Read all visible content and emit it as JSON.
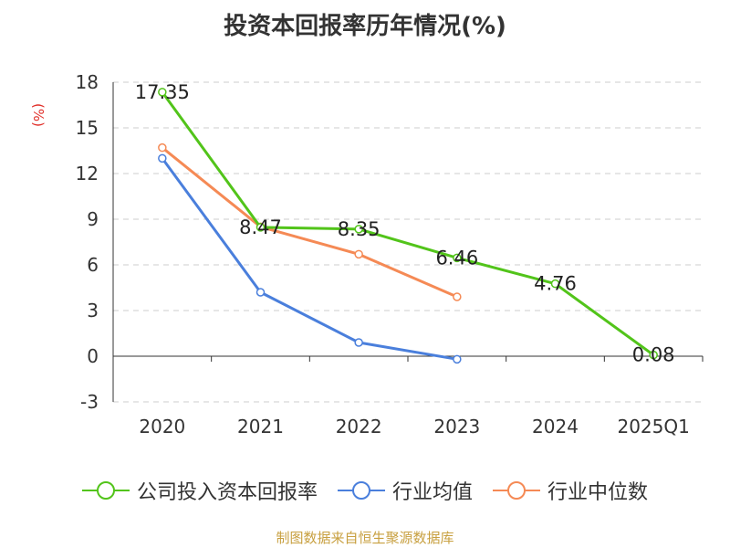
{
  "title": "投资本回报率历年情况(%)",
  "y_unit": "(%)",
  "source": "制图数据来自恒生聚源数据库",
  "chart_data": {
    "type": "line",
    "categories": [
      "2020",
      "2021",
      "2022",
      "2023",
      "2024",
      "2025Q1"
    ],
    "ylim": [
      -3,
      18
    ],
    "yticks": [
      -3,
      0,
      3,
      6,
      9,
      12,
      15,
      18
    ],
    "grid": true,
    "legend_position": "bottom",
    "series": [
      {
        "name": "公司投入资本回报率",
        "color": "#52c41a",
        "values": [
          17.35,
          8.47,
          8.35,
          6.46,
          4.76,
          0.08
        ],
        "labels": [
          "17.35",
          "8.47",
          "8.35",
          "6.46",
          "4.76",
          "0.08"
        ]
      },
      {
        "name": "行业均值",
        "color": "#4a7fdc",
        "values": [
          13.0,
          4.2,
          0.9,
          -0.2,
          null,
          null
        ]
      },
      {
        "name": "行业中位数",
        "color": "#f58a55",
        "values": [
          13.7,
          8.5,
          6.7,
          3.9,
          null,
          null
        ]
      }
    ]
  }
}
